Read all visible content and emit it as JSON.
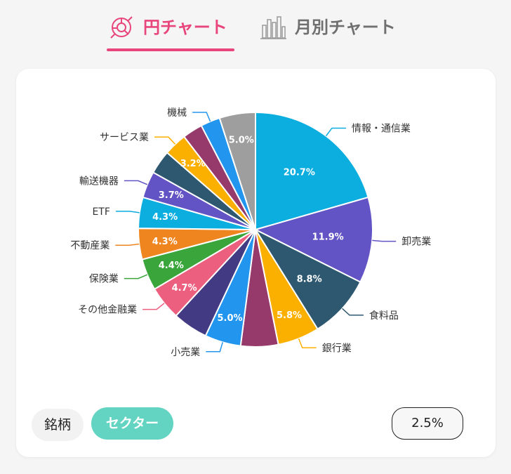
{
  "tabs": [
    {
      "label": "円チャート",
      "icon": "pie-chart-icon",
      "active": true,
      "color": "#e8457d"
    },
    {
      "label": "月別チャート",
      "icon": "bar-chart-icon",
      "active": false,
      "color": "#6f6f6f"
    }
  ],
  "footer": {
    "stock_label": "銘柄",
    "sector_label": "セクター",
    "threshold_label": "2.5%"
  },
  "colors": {
    "accent": "#e8457d",
    "sector_active": "#62d4c1"
  },
  "chart_data": {
    "type": "pie",
    "title": "",
    "start": "top",
    "direction": "clockwise",
    "slices": [
      {
        "name": "情報・通信業",
        "value": 20.7,
        "label": "20.7%",
        "color": "#0caee0"
      },
      {
        "name": "卸売業",
        "value": 11.9,
        "label": "11.9%",
        "color": "#6254c5"
      },
      {
        "name": "食料品",
        "value": 8.8,
        "label": "8.8%",
        "color": "#2d5870"
      },
      {
        "name": "銀行業",
        "value": 5.8,
        "label": "5.8%",
        "color": "#fbb000"
      },
      {
        "name": "",
        "value": 5.2,
        "label": "",
        "color": "#963a6b"
      },
      {
        "name": "小売業",
        "value": 5.0,
        "label": "5.0%",
        "color": "#2295ee"
      },
      {
        "name": "",
        "value": 4.9,
        "label": "",
        "color": "#433a84"
      },
      {
        "name": "その他金融業",
        "value": 4.7,
        "label": "4.7%",
        "color": "#ec5f7f"
      },
      {
        "name": "保険業",
        "value": 4.4,
        "label": "4.4%",
        "color": "#3aa53a"
      },
      {
        "name": "不動産業",
        "value": 4.3,
        "label": "4.3%",
        "color": "#ee851f"
      },
      {
        "name": "ETF",
        "value": 4.3,
        "label": "4.3%",
        "color": "#0caee0"
      },
      {
        "name": "輸送機器",
        "value": 3.7,
        "label": "3.7%",
        "color": "#6254c5"
      },
      {
        "name": "",
        "value": 3.3,
        "label": "",
        "color": "#2d5870"
      },
      {
        "name": "サービス業",
        "value": 3.2,
        "label": "3.2%",
        "color": "#fbb000"
      },
      {
        "name": "",
        "value": 2.8,
        "label": "",
        "color": "#963a6b"
      },
      {
        "name": "機械",
        "value": 2.7,
        "label": "",
        "color": "#2295ee"
      },
      {
        "name": "",
        "value": 5.0,
        "label": "5.0%",
        "color": "#9e9e9e"
      }
    ]
  }
}
